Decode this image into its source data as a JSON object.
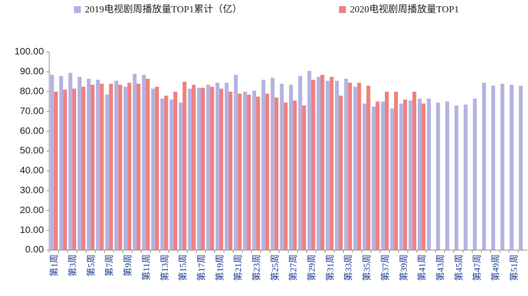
{
  "chart_data": {
    "type": "bar",
    "categories": [
      "第1周",
      null,
      "第3周",
      null,
      "第5周",
      null,
      "第7周",
      null,
      "第9周",
      null,
      "第11周",
      null,
      "第13周",
      null,
      "第15周",
      null,
      "第17周",
      null,
      "第19周",
      null,
      "第21周",
      null,
      "第23周",
      null,
      "第25周",
      null,
      "第27周",
      null,
      "第29周",
      null,
      "第31周",
      null,
      "第33周",
      null,
      "第35周",
      null,
      "第37周",
      null,
      "第39周",
      null,
      "第41周",
      null,
      "第43周",
      null,
      "第45周",
      null,
      "第47周",
      null,
      "第49周",
      null,
      "第51周",
      null
    ],
    "series": [
      {
        "name": "2019电视剧周播放量TOP1累计（亿）",
        "color": "#b3b3e0",
        "values": [
          88.5,
          88,
          89.5,
          87.5,
          86.5,
          86,
          78.5,
          85.5,
          82.5,
          89,
          88.5,
          81.5,
          76.5,
          76,
          74.5,
          81.5,
          82,
          83.5,
          84.5,
          84.5,
          88.5,
          80,
          80.5,
          86,
          87,
          84,
          83.5,
          88,
          90.5,
          87.5,
          85.5,
          85.5,
          86.5,
          82.5,
          74,
          72.5,
          75,
          71.5,
          74,
          75.5,
          76.5,
          76.5,
          74.5,
          75,
          73,
          73.5,
          76.5,
          84.5,
          83,
          84,
          83.5,
          83
        ]
      },
      {
        "name": "2020电视剧周播放量TOP1",
        "color": "#f08080",
        "values": [
          80,
          81,
          81.5,
          82.5,
          83.5,
          84,
          84,
          83.5,
          84.5,
          84,
          86.5,
          82.5,
          78,
          80,
          85,
          83.5,
          82,
          82.5,
          81.5,
          80,
          79,
          78.5,
          77.5,
          79,
          77,
          74.5,
          75.5,
          73,
          86,
          88.5,
          87.5,
          78,
          84.5,
          84.5,
          83,
          75,
          80,
          80,
          76,
          80,
          74,
          null,
          null,
          null,
          null,
          null,
          null,
          null,
          null,
          null,
          null,
          null
        ]
      }
    ],
    "ylim": [
      0,
      100
    ],
    "yticks": [
      {
        "value": 0,
        "label": "0.00"
      },
      {
        "value": 10,
        "label": "10.00"
      },
      {
        "value": 20,
        "label": "20.00"
      },
      {
        "value": 30,
        "label": "30.00"
      },
      {
        "value": 40,
        "label": "40.00"
      },
      {
        "value": 50,
        "label": "50.00"
      },
      {
        "value": 60,
        "label": "60.00"
      },
      {
        "value": 70,
        "label": "70.00"
      },
      {
        "value": 80,
        "label": "80.00"
      },
      {
        "value": 90,
        "label": "90.00"
      },
      {
        "value": 100,
        "label": "100.00"
      }
    ],
    "legend": "top"
  }
}
